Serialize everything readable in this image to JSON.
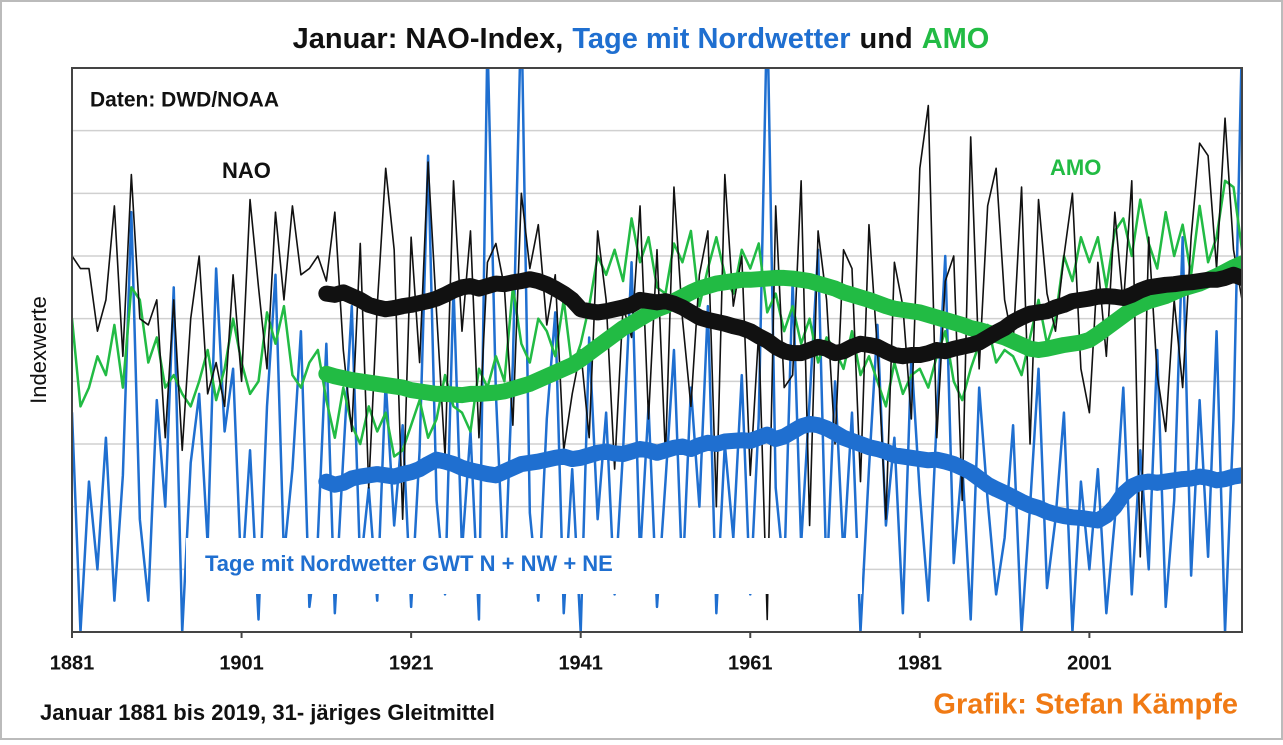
{
  "chart_data": {
    "type": "line",
    "title_parts": [
      {
        "text": "Januar: NAO-Index,",
        "color": "#111111"
      },
      {
        "text": "Tage mit Nordwetter",
        "color": "#1f6fd0"
      },
      {
        "text": "und",
        "color": "#111111"
      },
      {
        "text": "AMO",
        "color": "#22bb44"
      }
    ],
    "ylabel": "Indexwerte",
    "source": "Daten: DWD/NOAA",
    "footnote": "Januar 1881 bis 2019, 31- järiges Gleitmittel",
    "credit": "Grafik: Stefan Kämpfe",
    "credit_color": "#f07a14",
    "xlim": [
      1881,
      2019
    ],
    "xticks": [
      1881,
      1901,
      1921,
      1941,
      1961,
      1981,
      2001
    ],
    "ylim": [
      0,
      9
    ],
    "yticks": [
      0,
      1,
      2,
      3,
      4,
      5,
      6,
      7,
      8,
      9
    ],
    "grid": true,
    "x": [
      1881,
      1882,
      1883,
      1884,
      1885,
      1886,
      1887,
      1888,
      1889,
      1890,
      1891,
      1892,
      1893,
      1894,
      1895,
      1896,
      1897,
      1898,
      1899,
      1900,
      1901,
      1902,
      1903,
      1904,
      1905,
      1906,
      1907,
      1908,
      1909,
      1910,
      1911,
      1912,
      1913,
      1914,
      1915,
      1916,
      1917,
      1918,
      1919,
      1920,
      1921,
      1922,
      1923,
      1924,
      1925,
      1926,
      1927,
      1928,
      1929,
      1930,
      1931,
      1932,
      1933,
      1934,
      1935,
      1936,
      1937,
      1938,
      1939,
      1940,
      1941,
      1942,
      1943,
      1944,
      1945,
      1946,
      1947,
      1948,
      1949,
      1950,
      1951,
      1952,
      1953,
      1954,
      1955,
      1956,
      1957,
      1958,
      1959,
      1960,
      1961,
      1962,
      1963,
      1964,
      1965,
      1966,
      1967,
      1968,
      1969,
      1970,
      1971,
      1972,
      1973,
      1974,
      1975,
      1976,
      1977,
      1978,
      1979,
      1980,
      1981,
      1982,
      1983,
      1984,
      1985,
      1986,
      1987,
      1988,
      1989,
      1990,
      1991,
      1992,
      1993,
      1994,
      1995,
      1996,
      1997,
      1998,
      1999,
      2000,
      2001,
      2002,
      2003,
      2004,
      2005,
      2006,
      2007,
      2008,
      2009,
      2010,
      2011,
      2012,
      2013,
      2014,
      2015,
      2016,
      2017,
      2018,
      2019
    ],
    "series": [
      {
        "name": "Tage mit Nordwetter GWT N + NW + NE",
        "color": "#1f6fd0",
        "line_width": 2.5,
        "values": [
          3.5,
          0.0,
          2.4,
          1.0,
          3.1,
          0.5,
          2.5,
          6.7,
          1.8,
          0.5,
          3.7,
          2.0,
          5.5,
          0.0,
          2.7,
          3.8,
          1.4,
          5.8,
          3.2,
          4.2,
          0.8,
          2.9,
          0.2,
          3.6,
          5.7,
          1.2,
          2.6,
          4.8,
          0.4,
          1.5,
          4.6,
          0.3,
          2.8,
          5.2,
          1.0,
          2.3,
          0.5,
          4.0,
          1.7,
          3.3,
          0.4,
          2.9,
          7.6,
          2.1,
          0.6,
          5.5,
          1.3,
          3.2,
          0.2,
          9.5,
          3.8,
          0.7,
          4.3,
          10.0,
          1.9,
          0.5,
          3.4,
          5.1,
          0.3,
          2.6,
          0.0,
          4.7,
          1.8,
          3.5,
          0.6,
          2.9,
          5.9,
          1.2,
          3.6,
          0.4,
          2.4,
          4.5,
          0.8,
          3.9,
          2.0,
          5.2,
          0.3,
          3.0,
          1.5,
          4.1,
          0.6,
          3.4,
          10.0,
          2.3,
          0.9,
          5.6,
          1.4,
          3.7,
          6.1,
          0.8,
          4.0,
          1.2,
          3.5,
          0.0,
          2.6,
          4.9,
          1.7,
          3.1,
          0.3,
          4.4,
          2.2,
          0.5,
          3.4,
          6.0,
          1.1,
          2.7,
          0.2,
          3.9,
          2.1,
          0.6,
          1.5,
          3.3,
          0.0,
          2.0,
          4.2,
          0.7,
          1.8,
          3.5,
          0.0,
          2.4,
          1.0,
          2.6,
          0.3,
          1.8,
          3.9,
          0.6,
          2.9,
          1.0,
          4.5,
          0.4,
          2.1,
          6.3,
          0.9,
          3.7,
          1.2,
          4.8,
          0.0,
          3.4,
          9.5
        ]
      },
      {
        "name": "AMO",
        "color": "#22bb44",
        "line_width": 2.5,
        "values": [
          5.0,
          3.6,
          3.9,
          4.4,
          4.1,
          4.9,
          3.9,
          5.5,
          5.3,
          4.3,
          4.7,
          3.9,
          4.1,
          3.8,
          3.6,
          4.0,
          4.5,
          3.7,
          4.2,
          5.0,
          4.3,
          3.8,
          4.0,
          5.1,
          4.6,
          5.2,
          4.1,
          3.9,
          4.3,
          4.5,
          3.7,
          3.1,
          3.9,
          3.3,
          3.0,
          3.6,
          3.2,
          3.5,
          2.8,
          2.9,
          3.3,
          3.7,
          3.1,
          3.4,
          4.1,
          3.6,
          3.5,
          3.2,
          4.2,
          3.9,
          4.4,
          4.0,
          5.5,
          4.6,
          4.3,
          5.0,
          4.8,
          4.4,
          5.3,
          4.2,
          4.6,
          5.2,
          6.0,
          5.7,
          6.1,
          5.6,
          6.6,
          5.9,
          6.3,
          5.5,
          5.4,
          6.2,
          5.9,
          6.4,
          5.2,
          5.8,
          6.3,
          5.7,
          5.4,
          6.1,
          5.8,
          6.2,
          5.1,
          5.4,
          4.8,
          5.2,
          4.6,
          5.0,
          4.3,
          4.7,
          4.5,
          4.2,
          4.8,
          4.1,
          4.4,
          4.0,
          3.6,
          4.3,
          3.8,
          4.1,
          4.2,
          3.9,
          4.4,
          4.8,
          4.0,
          3.7,
          4.2,
          4.6,
          4.9,
          4.3,
          4.5,
          4.4,
          4.1,
          4.7,
          5.3,
          4.6,
          5.0,
          6.0,
          5.6,
          6.3,
          5.9,
          6.3,
          5.5,
          6.4,
          6.6,
          6.0,
          6.9,
          6.2,
          5.8,
          6.7,
          6.0,
          6.5,
          5.7,
          6.8,
          5.9,
          6.3,
          7.2,
          7.1,
          6.1
        ]
      },
      {
        "name": "NAO",
        "color": "#111111",
        "line_width": 1.6,
        "values": [
          6.0,
          5.8,
          5.8,
          4.8,
          5.3,
          6.8,
          4.4,
          7.3,
          5.0,
          4.9,
          5.3,
          3.1,
          5.3,
          2.9,
          5.0,
          6.0,
          3.8,
          4.3,
          3.6,
          5.7,
          4.0,
          6.9,
          5.5,
          4.2,
          6.7,
          5.3,
          6.8,
          5.7,
          5.8,
          6.0,
          5.6,
          6.7,
          4.5,
          3.2,
          6.2,
          2.3,
          5.2,
          7.4,
          6.1,
          1.8,
          6.3,
          4.3,
          7.5,
          5.1,
          2.8,
          7.2,
          4.8,
          6.4,
          3.1,
          5.9,
          6.2,
          5.5,
          3.3,
          7.0,
          5.8,
          6.5,
          4.9,
          5.7,
          2.9,
          3.8,
          4.5,
          3.1,
          6.4,
          5.3,
          2.6,
          5.2,
          4.7,
          6.8,
          3.4,
          6.1,
          2.8,
          7.1,
          5.0,
          3.6,
          5.7,
          6.4,
          2.0,
          7.3,
          5.2,
          6.0,
          2.5,
          4.8,
          0.2,
          6.8,
          3.9,
          4.1,
          7.2,
          1.7,
          6.4,
          5.3,
          3.0,
          6.1,
          5.8,
          2.4,
          6.5,
          4.5,
          1.8,
          5.9,
          5.2,
          3.4,
          7.4,
          8.4,
          3.1,
          5.6,
          6.0,
          2.1,
          7.9,
          4.2,
          6.8,
          7.4,
          5.3,
          4.6,
          7.1,
          3.0,
          6.9,
          5.4,
          4.8,
          6.0,
          7.0,
          4.2,
          3.5,
          5.9,
          4.4,
          6.7,
          5.2,
          7.2,
          1.2,
          6.3,
          4.1,
          3.2,
          5.3,
          3.9,
          6.3,
          7.8,
          7.6,
          5.8,
          8.2,
          6.1,
          5.3
        ]
      },
      {
        "color": "#22bb44",
        "line_width": 16,
        "values": [
          null,
          null,
          null,
          null,
          null,
          null,
          null,
          null,
          null,
          null,
          null,
          null,
          null,
          null,
          null,
          null,
          null,
          null,
          null,
          null,
          null,
          null,
          null,
          null,
          null,
          null,
          null,
          null,
          null,
          null,
          4.12,
          4.08,
          4.05,
          4.02,
          4.0,
          3.98,
          3.96,
          3.94,
          3.92,
          3.9,
          3.86,
          3.84,
          3.82,
          3.8,
          3.8,
          3.79,
          3.78,
          3.8,
          3.8,
          3.81,
          3.82,
          3.84,
          3.88,
          3.92,
          3.96,
          4.02,
          4.08,
          4.14,
          4.2,
          4.26,
          4.35,
          4.45,
          4.55,
          4.65,
          4.75,
          4.85,
          4.92,
          5.0,
          5.08,
          5.15,
          5.2,
          5.28,
          5.35,
          5.42,
          5.48,
          5.52,
          5.56,
          5.58,
          5.6,
          5.62,
          5.62,
          5.63,
          5.64,
          5.65,
          5.65,
          5.64,
          5.62,
          5.6,
          5.56,
          5.52,
          5.48,
          5.42,
          5.38,
          5.34,
          5.3,
          5.25,
          5.2,
          5.16,
          5.14,
          5.12,
          5.1,
          5.06,
          5.02,
          4.98,
          4.94,
          4.9,
          4.85,
          4.82,
          4.78,
          4.74,
          4.7,
          4.64,
          4.58,
          4.52,
          4.5,
          4.52,
          4.55,
          4.58,
          4.6,
          4.62,
          4.66,
          4.75,
          4.85,
          4.95,
          5.05,
          5.15,
          5.22,
          5.28,
          5.32,
          5.36,
          5.42,
          5.48,
          5.52,
          5.56,
          5.62,
          5.68,
          5.75,
          5.82,
          5.88
        ]
      },
      {
        "color": "#111111",
        "line_width": 16,
        "values": [
          null,
          null,
          null,
          null,
          null,
          null,
          null,
          null,
          null,
          null,
          null,
          null,
          null,
          null,
          null,
          null,
          null,
          null,
          null,
          null,
          null,
          null,
          null,
          null,
          null,
          null,
          null,
          null,
          null,
          null,
          5.4,
          5.38,
          5.42,
          5.36,
          5.3,
          5.22,
          5.18,
          5.15,
          5.17,
          5.2,
          5.22,
          5.25,
          5.28,
          5.32,
          5.38,
          5.45,
          5.5,
          5.52,
          5.48,
          5.52,
          5.56,
          5.55,
          5.58,
          5.6,
          5.63,
          5.6,
          5.55,
          5.48,
          5.4,
          5.3,
          5.15,
          5.12,
          5.1,
          5.12,
          5.15,
          5.18,
          5.22,
          5.3,
          5.28,
          5.26,
          5.28,
          5.24,
          5.18,
          5.1,
          5.02,
          4.98,
          4.95,
          4.92,
          4.88,
          4.85,
          4.8,
          4.72,
          4.65,
          4.55,
          4.48,
          4.45,
          4.45,
          4.5,
          4.55,
          4.52,
          4.45,
          4.48,
          4.55,
          4.6,
          4.58,
          4.55,
          4.48,
          4.42,
          4.4,
          4.42,
          4.42,
          4.45,
          4.5,
          4.48,
          4.52,
          4.55,
          4.58,
          4.62,
          4.7,
          4.78,
          4.85,
          4.95,
          5.02,
          5.08,
          5.1,
          5.12,
          5.18,
          5.22,
          5.28,
          5.3,
          5.32,
          5.35,
          5.36,
          5.35,
          5.33,
          5.38,
          5.45,
          5.5,
          5.52,
          5.54,
          5.55,
          5.57,
          5.58,
          5.6,
          5.62,
          5.62,
          5.65,
          5.7,
          5.65
        ]
      },
      {
        "color": "#1f6fd0",
        "line_width": 16,
        "values": [
          null,
          null,
          null,
          null,
          null,
          null,
          null,
          null,
          null,
          null,
          null,
          null,
          null,
          null,
          null,
          null,
          null,
          null,
          null,
          null,
          null,
          null,
          null,
          null,
          null,
          null,
          null,
          null,
          null,
          null,
          2.4,
          2.35,
          2.38,
          2.45,
          2.48,
          2.5,
          2.52,
          2.5,
          2.48,
          2.52,
          2.55,
          2.6,
          2.68,
          2.75,
          2.72,
          2.68,
          2.62,
          2.58,
          2.55,
          2.52,
          2.5,
          2.56,
          2.62,
          2.68,
          2.7,
          2.72,
          2.75,
          2.78,
          2.8,
          2.76,
          2.78,
          2.82,
          2.86,
          2.88,
          2.85,
          2.84,
          2.88,
          2.92,
          2.9,
          2.86,
          2.9,
          2.94,
          2.96,
          2.92,
          2.98,
          3.02,
          3.0,
          3.04,
          3.05,
          3.06,
          3.05,
          3.1,
          3.15,
          3.08,
          3.12,
          3.2,
          3.28,
          3.32,
          3.3,
          3.25,
          3.18,
          3.1,
          3.05,
          3.0,
          2.95,
          2.92,
          2.88,
          2.82,
          2.8,
          2.78,
          2.76,
          2.74,
          2.75,
          2.72,
          2.68,
          2.62,
          2.55,
          2.45,
          2.35,
          2.28,
          2.22,
          2.15,
          2.08,
          2.02,
          1.98,
          1.92,
          1.88,
          1.85,
          1.83,
          1.82,
          1.8,
          1.78,
          1.86,
          2.0,
          2.2,
          2.32,
          2.38,
          2.4,
          2.38,
          2.4,
          2.42,
          2.44,
          2.45,
          2.48,
          2.46,
          2.42,
          2.44,
          2.48,
          2.5
        ]
      }
    ]
  }
}
